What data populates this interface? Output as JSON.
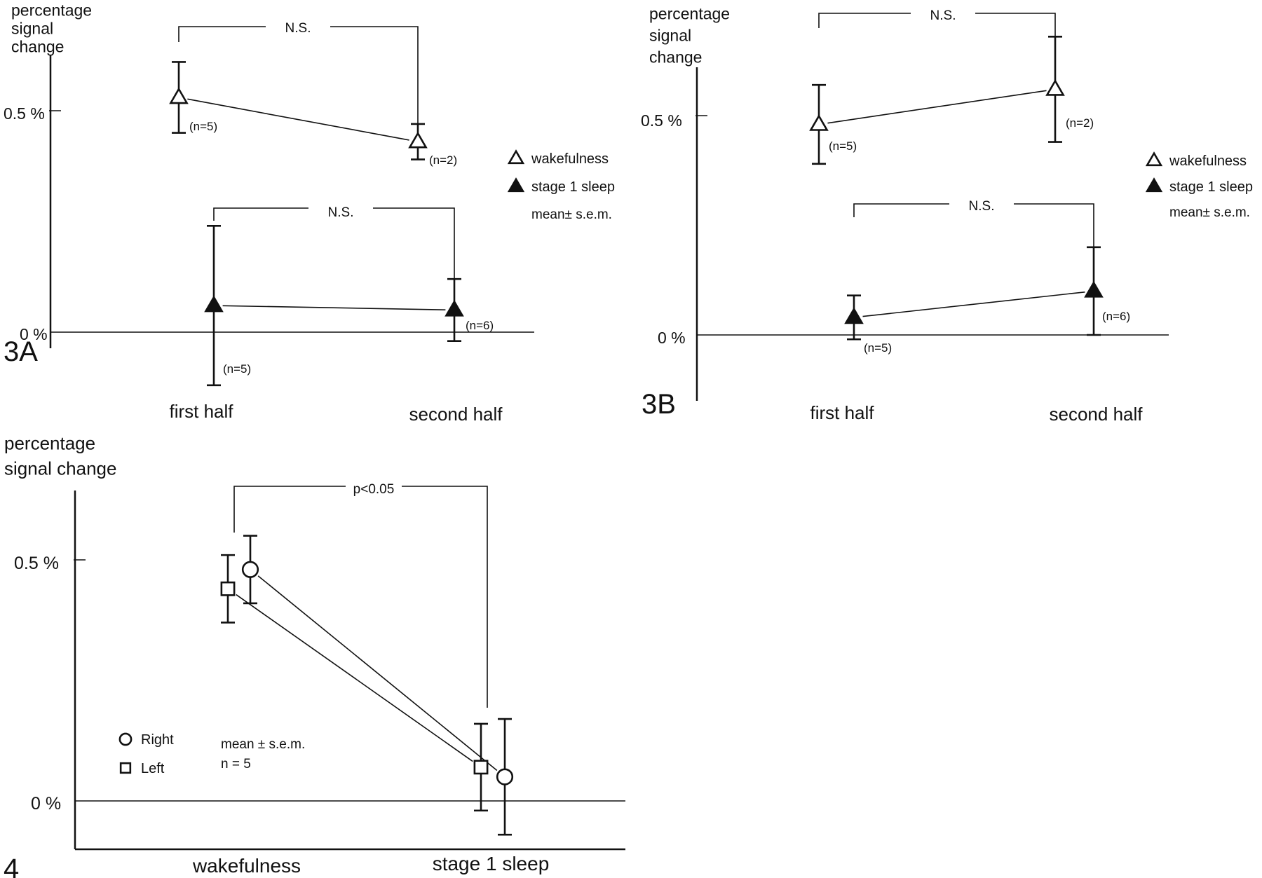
{
  "chart_data": [
    {
      "type": "scatter",
      "panel_label": "3A",
      "ylabel": "percentage\nsignal\nchange",
      "y_ticks": [
        "0.5 %",
        "0 %"
      ],
      "categories": [
        "first half",
        "second half"
      ],
      "series": [
        {
          "name": "wakefulness",
          "marker": "open-triangle",
          "points": [
            {
              "x": "first half",
              "y": 0.53,
              "err": 0.08,
              "n": "(n=5)"
            },
            {
              "x": "second half",
              "y": 0.43,
              "err": 0.04,
              "n": "(n=2)"
            }
          ]
        },
        {
          "name": "stage 1 sleep",
          "marker": "filled-triangle",
          "points": [
            {
              "x": "first half",
              "y": 0.06,
              "err": 0.18,
              "n": "(n=5)"
            },
            {
              "x": "second half",
              "y": 0.05,
              "err": 0.07,
              "n": "(n=6)"
            }
          ]
        }
      ],
      "brackets": [
        "N.S.",
        "N.S."
      ],
      "legend_note": "mean± s.e.m."
    },
    {
      "type": "scatter",
      "panel_label": "3B",
      "ylabel": "percentage\nsignal\nchange",
      "y_ticks": [
        "0.5 %",
        "0 %"
      ],
      "categories": [
        "first half",
        "second half"
      ],
      "series": [
        {
          "name": "wakefulness",
          "marker": "open-triangle",
          "points": [
            {
              "x": "first half",
              "y": 0.48,
              "err": 0.09,
              "n": "(n=5)"
            },
            {
              "x": "second half",
              "y": 0.56,
              "err": 0.12,
              "n": "(n=2)"
            }
          ]
        },
        {
          "name": "stage 1 sleep",
          "marker": "filled-triangle",
          "points": [
            {
              "x": "first half",
              "y": 0.04,
              "err": 0.05,
              "n": "(n=5)"
            },
            {
              "x": "second half",
              "y": 0.1,
              "err": 0.1,
              "n": "(n=6)"
            }
          ]
        }
      ],
      "brackets": [
        "N.S.",
        "N.S."
      ],
      "legend_note": "mean± s.e.m."
    },
    {
      "type": "scatter",
      "panel_label": "4",
      "ylabel": "percentage\nsignal change",
      "y_ticks": [
        "0.5 %",
        "0 %"
      ],
      "categories": [
        "wakefulness",
        "stage 1 sleep"
      ],
      "series": [
        {
          "name": "Right",
          "marker": "open-circle",
          "points": [
            {
              "x": "wakefulness",
              "y": 0.48,
              "err": 0.07
            },
            {
              "x": "stage 1 sleep",
              "y": 0.05,
              "err": 0.12
            }
          ]
        },
        {
          "name": "Left",
          "marker": "open-square",
          "points": [
            {
              "x": "wakefulness",
              "y": 0.44,
              "err": 0.07
            },
            {
              "x": "stage 1 sleep",
              "y": 0.07,
              "err": 0.09
            }
          ]
        }
      ],
      "brackets": [
        "p<0.05"
      ],
      "legend_note": "mean ± s.e.m.",
      "n_note": "n = 5"
    }
  ]
}
